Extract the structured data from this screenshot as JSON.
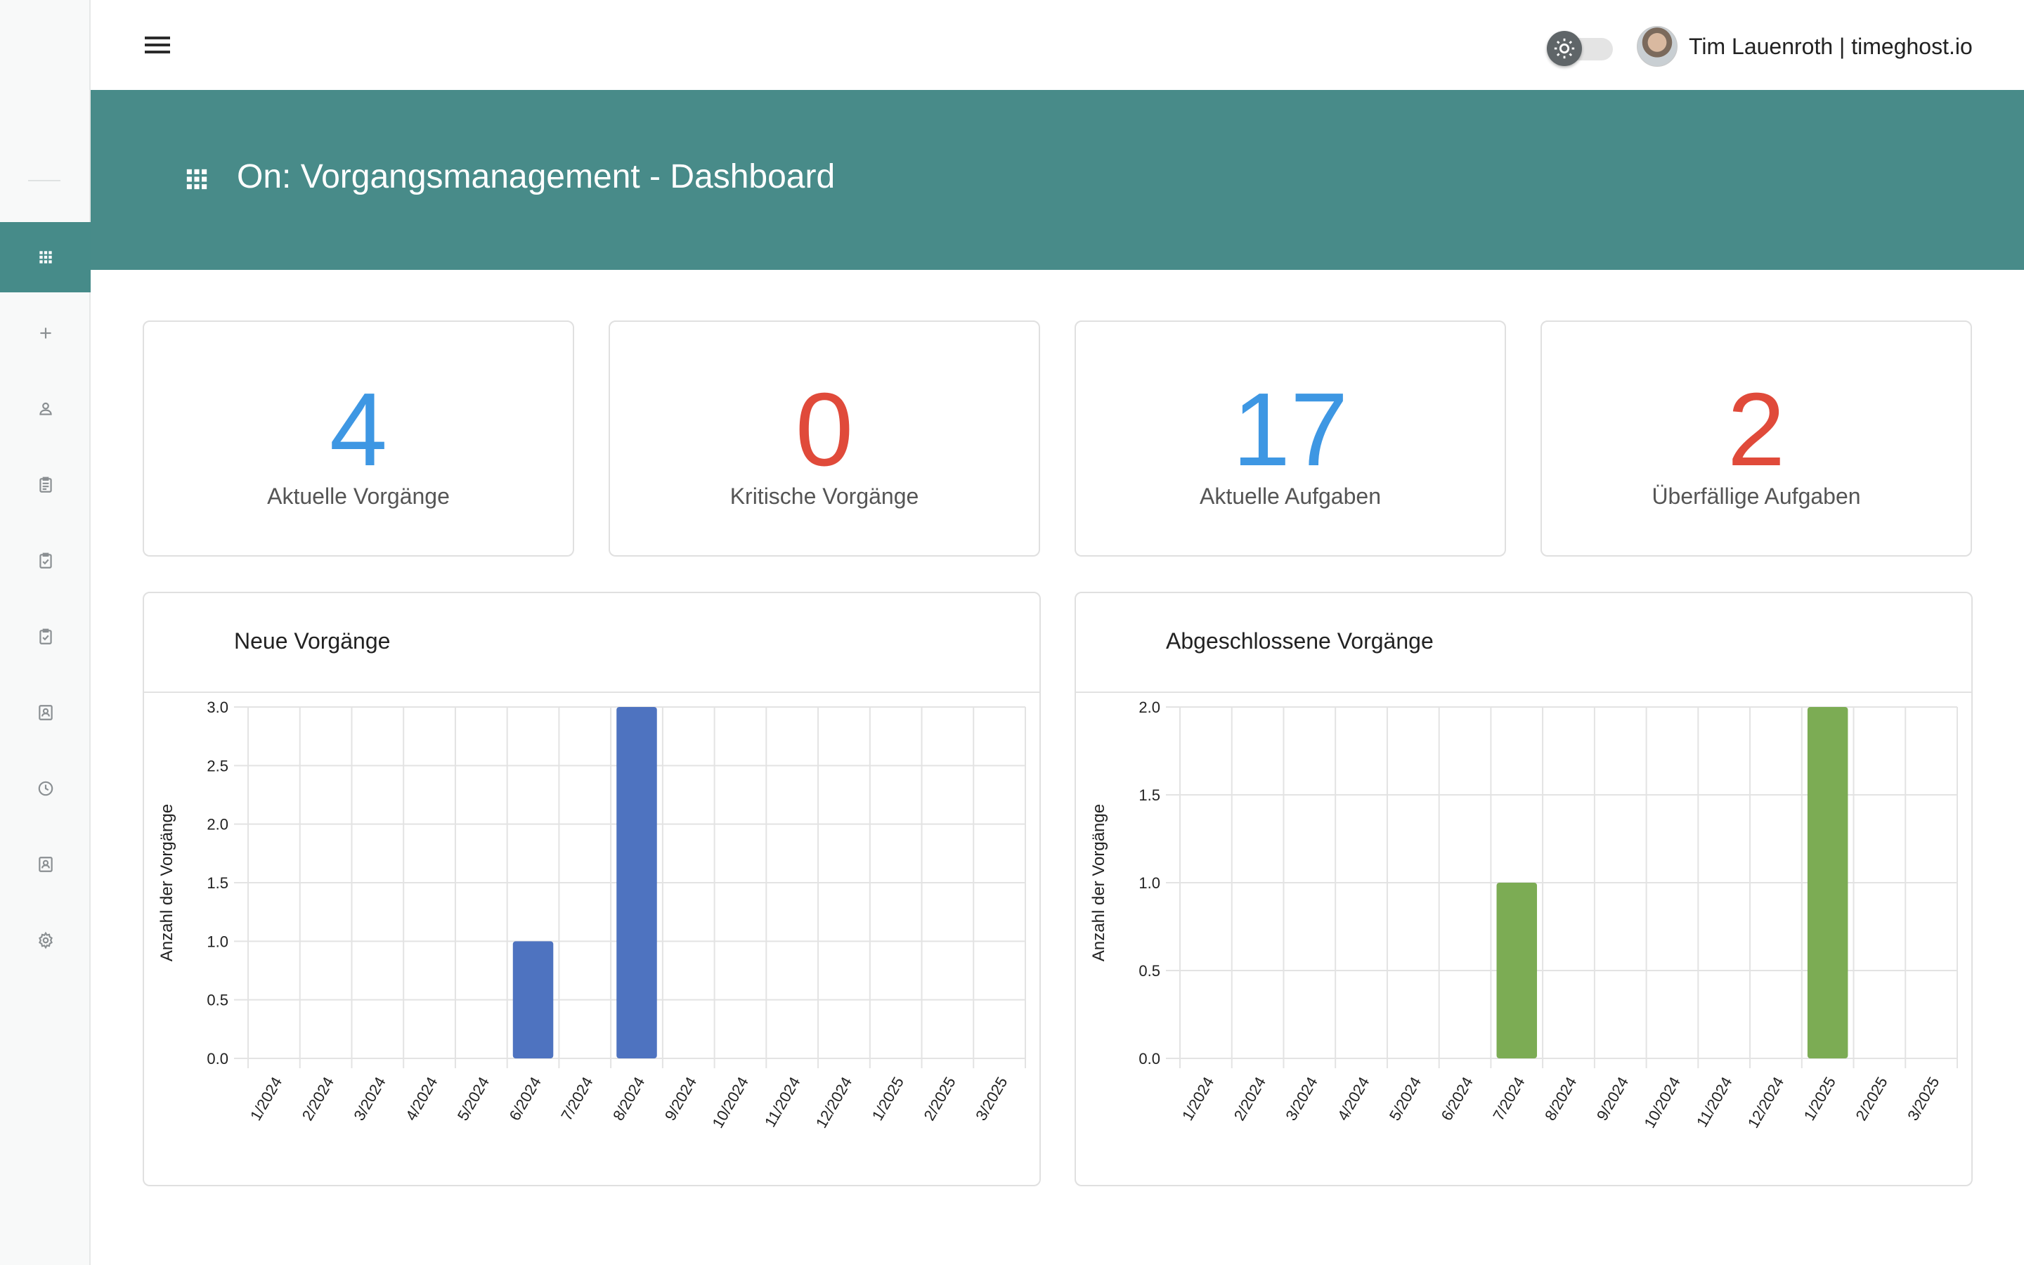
{
  "user": {
    "name": "Tim Lauenroth | timeghost.io"
  },
  "header": {
    "title": "On: Vorgangsmanagement - Dashboard"
  },
  "sidebar": {
    "items": [
      {
        "icon": "apps-grid-icon",
        "active": true
      },
      {
        "icon": "plus-icon"
      },
      {
        "icon": "person-icon"
      },
      {
        "icon": "clipboard-icon"
      },
      {
        "icon": "clipboard-check-icon"
      },
      {
        "icon": "clipboard-check-icon"
      },
      {
        "icon": "contact-card-icon"
      },
      {
        "icon": "clock-icon"
      },
      {
        "icon": "contact-card-icon"
      },
      {
        "icon": "gear-icon"
      }
    ]
  },
  "kpis": [
    {
      "value": "4",
      "label": "Aktuelle Vorgänge",
      "color": "#3e97e3"
    },
    {
      "value": "0",
      "label": "Kritische Vorgänge",
      "color": "#e04a3a"
    },
    {
      "value": "17",
      "label": "Aktuelle Aufgaben",
      "color": "#3e97e3"
    },
    {
      "value": "2",
      "label": "Überfällige Aufgaben",
      "color": "#e04a3a"
    }
  ],
  "chart_data": [
    {
      "type": "bar",
      "title": "Neue Vorgänge",
      "ylabel": "Anzahl der Vorgänge",
      "xlabel": "",
      "categories": [
        "1/2024",
        "2/2024",
        "3/2024",
        "4/2024",
        "5/2024",
        "6/2024",
        "7/2024",
        "8/2024",
        "9/2024",
        "10/2024",
        "11/2024",
        "12/2024",
        "1/2025",
        "2/2025",
        "3/2025"
      ],
      "values": [
        0,
        0,
        0,
        0,
        0,
        1,
        0,
        3,
        0,
        0,
        0,
        0,
        0,
        0,
        0
      ],
      "ylim": [
        0,
        3
      ],
      "yticks": [
        "0.0",
        "0.5",
        "1.0",
        "1.5",
        "2.0",
        "2.5",
        "3.0"
      ],
      "color": "#4e73c0",
      "grid": true
    },
    {
      "type": "bar",
      "title": "Abgeschlossene Vorgänge",
      "ylabel": "Anzahl der Vorgänge",
      "xlabel": "",
      "categories": [
        "1/2024",
        "2/2024",
        "3/2024",
        "4/2024",
        "5/2024",
        "6/2024",
        "7/2024",
        "8/2024",
        "9/2024",
        "10/2024",
        "11/2024",
        "12/2024",
        "1/2025",
        "2/2025",
        "3/2025"
      ],
      "values": [
        0,
        0,
        0,
        0,
        0,
        0,
        1,
        0,
        0,
        0,
        0,
        0,
        2,
        0,
        0
      ],
      "ylim": [
        0,
        2
      ],
      "yticks": [
        "0.0",
        "0.5",
        "1.0",
        "1.5",
        "2.0"
      ],
      "color": "#7cac54",
      "grid": true
    }
  ]
}
